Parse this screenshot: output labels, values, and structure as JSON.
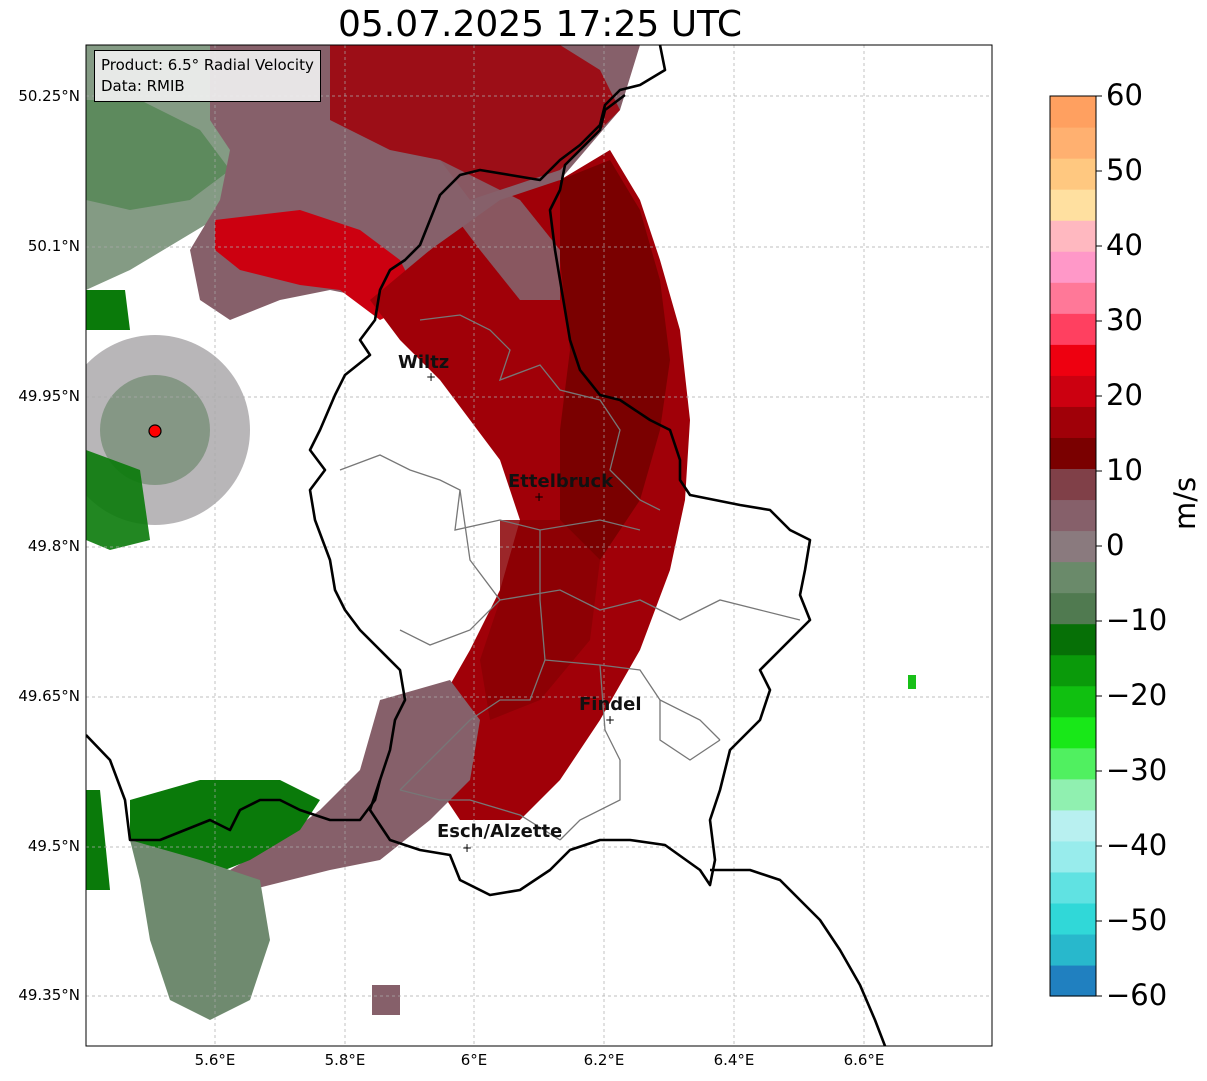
{
  "title": "05.07.2025 17:25 UTC",
  "infobox": {
    "product": "Product: 6.5° Radial Velocity",
    "data": "Data: RMIB"
  },
  "lat_ticks": [
    "50.25°N",
    "50.1°N",
    "49.95°N",
    "49.8°N",
    "49.65°N",
    "49.5°N",
    "49.35°N"
  ],
  "lon_ticks": [
    "5.6°E",
    "5.8°E",
    "6°E",
    "6.2°E",
    "6.4°E",
    "6.6°E"
  ],
  "cities": [
    "Wiltz",
    "Ettelbruck",
    "Findel",
    "Esch/Alzette"
  ],
  "colorbar": {
    "label": "m/s",
    "ticks": [
      "60",
      "50",
      "40",
      "30",
      "20",
      "10",
      "0",
      "−10",
      "−20",
      "−30",
      "−40",
      "−50",
      "−60"
    ],
    "min": -60,
    "max": 60,
    "colors": [
      "#2080c0",
      "#28b8cc",
      "#30d8d8",
      "#60e2e2",
      "#98ecec",
      "#b8f0f0",
      "#90f0b0",
      "#50f060",
      "#18e818",
      "#10c010",
      "#0a9a0a",
      "#067006",
      "#507a50",
      "#6a8a6a",
      "#8a7a7e",
      "#86606a",
      "#804048",
      "#7a0000",
      "#a00008",
      "#cc0010",
      "#ee0010",
      "#ff4060",
      "#ff7898",
      "#ff98c8",
      "#ffb8c0",
      "#ffe0a0",
      "#ffc880",
      "#ffb070",
      "#ffa060"
    ]
  },
  "radar_site": {
    "color": "#ff0000"
  }
}
